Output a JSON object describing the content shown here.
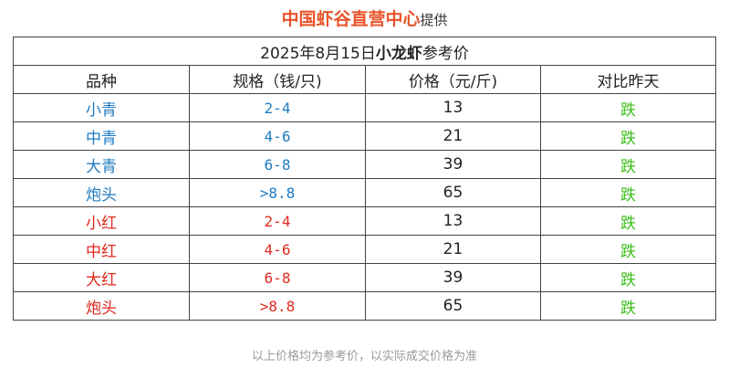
{
  "header": {
    "brand": "中国虾谷直营中心",
    "provided": "提供"
  },
  "table": {
    "title_date": "2025年8月15日",
    "title_product": "小龙虾",
    "title_suffix": "参考价",
    "columns": [
      "品种",
      "规格（钱/只)",
      "价格（元/斤)",
      "对比昨天"
    ],
    "rows": [
      {
        "name": "小青",
        "spec": "2-4",
        "price": "13",
        "change": "跌",
        "group": "blue"
      },
      {
        "name": "中青",
        "spec": "4-6",
        "price": "21",
        "change": "跌",
        "group": "blue"
      },
      {
        "name": "大青",
        "spec": "6-8",
        "price": "39",
        "change": "跌",
        "group": "blue"
      },
      {
        "name": "炮头",
        "spec": ">8.8",
        "price": "65",
        "change": "跌",
        "group": "blue"
      },
      {
        "name": "小红",
        "spec": "2-4",
        "price": "13",
        "change": "跌",
        "group": "red"
      },
      {
        "name": "中红",
        "spec": "4-6",
        "price": "21",
        "change": "跌",
        "group": "red"
      },
      {
        "name": "大红",
        "spec": "6-8",
        "price": "39",
        "change": "跌",
        "group": "red"
      },
      {
        "name": "炮头",
        "spec": ">8.8",
        "price": "65",
        "change": "跌",
        "group": "red"
      }
    ]
  },
  "footer": {
    "note": "以上价格均为参考价，以实际成交价格为准"
  },
  "colors": {
    "brand": "#e8542a",
    "blue": "#1f7bc0",
    "red": "#e02a1f",
    "green": "#3bbf1a"
  }
}
